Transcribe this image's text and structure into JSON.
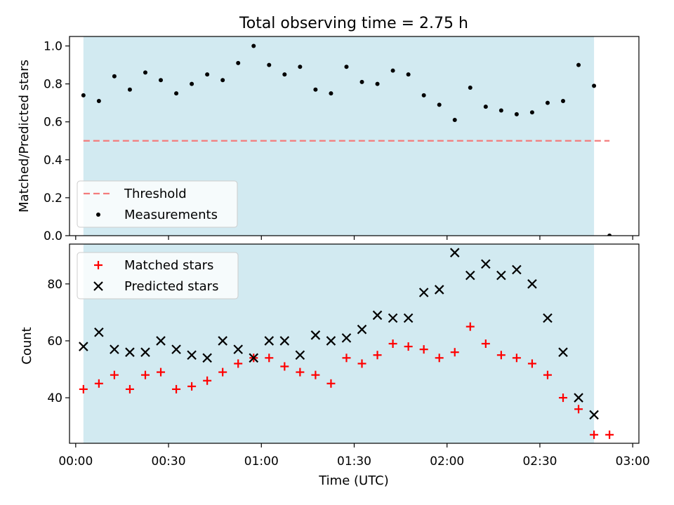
{
  "chart_data": [
    {
      "type": "scatter",
      "title": "Total observing time = 2.75 h",
      "ylabel": "Matched/Predicted stars",
      "xlabel": "",
      "ylim": [
        0.0,
        1.05
      ],
      "xlim_minutes": [
        -2,
        182
      ],
      "yticks": [
        0.0,
        0.2,
        0.4,
        0.6,
        0.8,
        1.0
      ],
      "ytick_labels": [
        "0.0",
        "0.2",
        "0.4",
        "0.6",
        "0.8",
        "1.0"
      ],
      "observing_window_minutes": [
        2.5,
        167.5
      ],
      "shaded_color": "#add8e6",
      "threshold": {
        "name": "Threshold",
        "y": 0.5,
        "x_range_minutes": [
          2.5,
          172.5
        ],
        "color": "#f47c7c",
        "style": "dashed"
      },
      "series": [
        {
          "name": "Measurements",
          "marker": "dot",
          "color": "#000000",
          "x_minutes": [
            2.5,
            7.5,
            12.5,
            17.5,
            22.5,
            27.5,
            32.5,
            37.5,
            42.5,
            47.5,
            52.5,
            57.5,
            62.5,
            67.5,
            72.5,
            77.5,
            82.5,
            87.5,
            92.5,
            97.5,
            102.5,
            107.5,
            112.5,
            117.5,
            122.5,
            127.5,
            132.5,
            137.5,
            142.5,
            147.5,
            152.5,
            157.5,
            162.5,
            167.5,
            172.5
          ],
          "y": [
            0.74,
            0.71,
            0.84,
            0.77,
            0.86,
            0.82,
            0.75,
            0.8,
            0.85,
            0.82,
            0.91,
            1.0,
            0.9,
            0.85,
            0.89,
            0.77,
            0.75,
            0.89,
            0.81,
            0.8,
            0.87,
            0.85,
            0.74,
            0.69,
            0.61,
            0.78,
            0.68,
            0.66,
            0.64,
            0.65,
            0.7,
            0.71,
            0.9,
            0.79,
            0.0
          ]
        }
      ],
      "legend": {
        "placement": "lower-left",
        "entries": [
          "Threshold",
          "Measurements"
        ]
      }
    },
    {
      "type": "scatter",
      "title": "",
      "ylabel": "Count",
      "xlabel": "Time (UTC)",
      "ylim": [
        24,
        94
      ],
      "xlim_minutes": [
        -2,
        182
      ],
      "yticks": [
        40,
        60,
        80
      ],
      "ytick_labels": [
        "40",
        "60",
        "80"
      ],
      "xticks_minutes": [
        0,
        30,
        60,
        90,
        120,
        150,
        180
      ],
      "xtick_labels": [
        "00:00",
        "00:30",
        "01:00",
        "01:30",
        "02:00",
        "02:30",
        "03:00"
      ],
      "observing_window_minutes": [
        2.5,
        167.5
      ],
      "shaded_color": "#add8e6",
      "series": [
        {
          "name": "Matched stars",
          "marker": "plus",
          "color": "#ff0000",
          "x_minutes": [
            2.5,
            7.5,
            12.5,
            17.5,
            22.5,
            27.5,
            32.5,
            37.5,
            42.5,
            47.5,
            52.5,
            57.5,
            62.5,
            67.5,
            72.5,
            77.5,
            82.5,
            87.5,
            92.5,
            97.5,
            102.5,
            107.5,
            112.5,
            117.5,
            122.5,
            127.5,
            132.5,
            137.5,
            142.5,
            147.5,
            152.5,
            157.5,
            162.5,
            167.5,
            172.5
          ],
          "y": [
            43,
            45,
            48,
            43,
            48,
            49,
            43,
            44,
            46,
            49,
            52,
            54,
            54,
            51,
            49,
            48,
            45,
            54,
            52,
            55,
            59,
            58,
            57,
            54,
            56,
            65,
            59,
            55,
            54,
            52,
            48,
            40,
            36,
            27,
            27
          ]
        },
        {
          "name": "Predicted stars",
          "marker": "x",
          "color": "#000000",
          "x_minutes": [
            2.5,
            7.5,
            12.5,
            17.5,
            22.5,
            27.5,
            32.5,
            37.5,
            42.5,
            47.5,
            52.5,
            57.5,
            62.5,
            67.5,
            72.5,
            77.5,
            82.5,
            87.5,
            92.5,
            97.5,
            102.5,
            107.5,
            112.5,
            117.5,
            122.5,
            127.5,
            132.5,
            137.5,
            142.5,
            147.5,
            152.5,
            157.5,
            162.5,
            167.5
          ],
          "y": [
            58,
            63,
            57,
            56,
            56,
            60,
            57,
            55,
            54,
            60,
            57,
            54,
            60,
            60,
            55,
            62,
            60,
            61,
            64,
            69,
            68,
            68,
            77,
            78,
            91,
            83,
            87,
            83,
            85,
            80,
            68,
            56,
            40,
            34
          ]
        }
      ],
      "legend": {
        "placement": "upper-left",
        "entries": [
          "Matched stars",
          "Predicted stars"
        ]
      }
    }
  ]
}
